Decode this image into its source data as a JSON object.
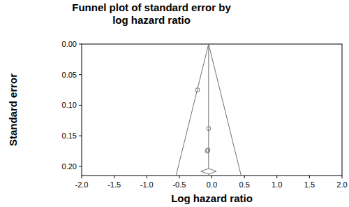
{
  "chart_data": {
    "type": "scatter",
    "title": [
      "Funnel plot of standard error by",
      "log hazard ratio"
    ],
    "x_label": "Log hazard ratio",
    "y_label": "Standard error",
    "xlim": [
      -2,
      2
    ],
    "ylim": [
      0,
      0.215
    ],
    "xticks": [
      {
        "value": -2,
        "label": "-2.0"
      },
      {
        "value": -1.5,
        "label": "-1.5"
      },
      {
        "value": -1,
        "label": "-1.0"
      },
      {
        "value": -0.5,
        "label": "-0.5"
      },
      {
        "value": 0,
        "label": "0.0"
      },
      {
        "value": 0.5,
        "label": "0.5"
      },
      {
        "value": 1,
        "label": "1.0"
      },
      {
        "value": 1.5,
        "label": "1.5"
      },
      {
        "value": 2,
        "label": "2.0"
      }
    ],
    "yticks": [
      {
        "value": 0,
        "label": "0.00"
      },
      {
        "value": 0.05,
        "label": "0.05"
      },
      {
        "value": 0.1,
        "label": "0.10"
      },
      {
        "value": 0.15,
        "label": "0.15"
      },
      {
        "value": 0.2,
        "label": "0.20"
      }
    ],
    "x": [
      -0.22,
      -0.05,
      -0.07,
      -0.06
    ],
    "values": [
      0.075,
      0.138,
      0.175,
      0.173
    ],
    "marker": "circle",
    "color": "#707070",
    "pooled_estimate": -0.05,
    "pooled_ci": [
      -0.17,
      0.07
    ],
    "funnel": {
      "x": [
        -0.55,
        -0.05,
        0.45
      ],
      "y": [
        0.215,
        0,
        0.215
      ]
    }
  }
}
